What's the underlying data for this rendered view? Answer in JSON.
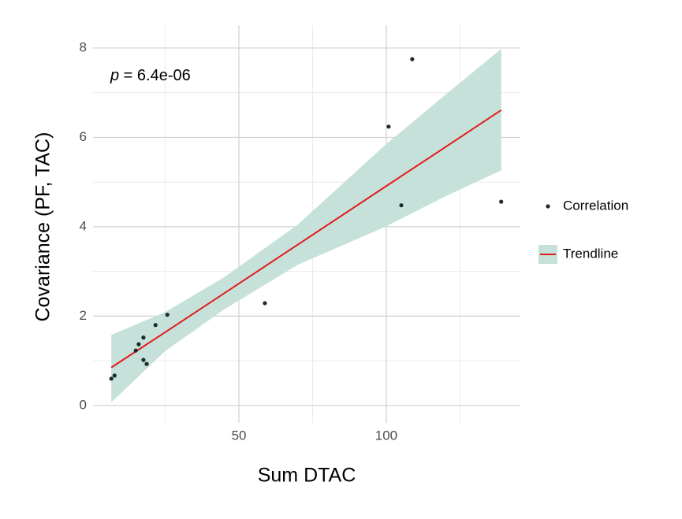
{
  "chart_data": {
    "type": "scatter",
    "x_label": "Sum DTAC",
    "y_label": "Covariance (PF, TAC)",
    "annotation": {
      "symbol": "p",
      "text": " = 6.4e-06"
    },
    "xlim": [
      0.5,
      145.5
    ],
    "ylim": [
      -0.39,
      8.51
    ],
    "xticks": [
      50,
      100
    ],
    "yticks": [
      0,
      2,
      4,
      6,
      8
    ],
    "grid": true,
    "legend": "right",
    "series": [
      {
        "name": "Correlation",
        "color": "#1c2b2b",
        "x": [
          6.7,
          7.8,
          15.0,
          16.0,
          17.6,
          17.6,
          18.7,
          21.7,
          25.7,
          58.8,
          100.8,
          105.1,
          108.8,
          139.0
        ],
        "values": [
          0.6,
          0.67,
          1.23,
          1.37,
          1.52,
          1.02,
          0.93,
          1.8,
          2.03,
          2.29,
          6.24,
          4.48,
          7.75,
          4.56
        ]
      },
      {
        "name": "Trendline",
        "color": "#e31a1c",
        "band_color": "#c5e1da",
        "x": [
          6.7,
          25,
          45,
          70,
          100,
          120,
          139
        ],
        "values": [
          0.85,
          1.64,
          2.51,
          3.6,
          4.91,
          5.78,
          6.61
        ],
        "lower": [
          0.07,
          1.22,
          2.15,
          3.15,
          4.01,
          4.68,
          5.26
        ],
        "upper": [
          1.58,
          2.09,
          2.87,
          4.05,
          5.85,
          6.95,
          7.98
        ]
      }
    ]
  }
}
